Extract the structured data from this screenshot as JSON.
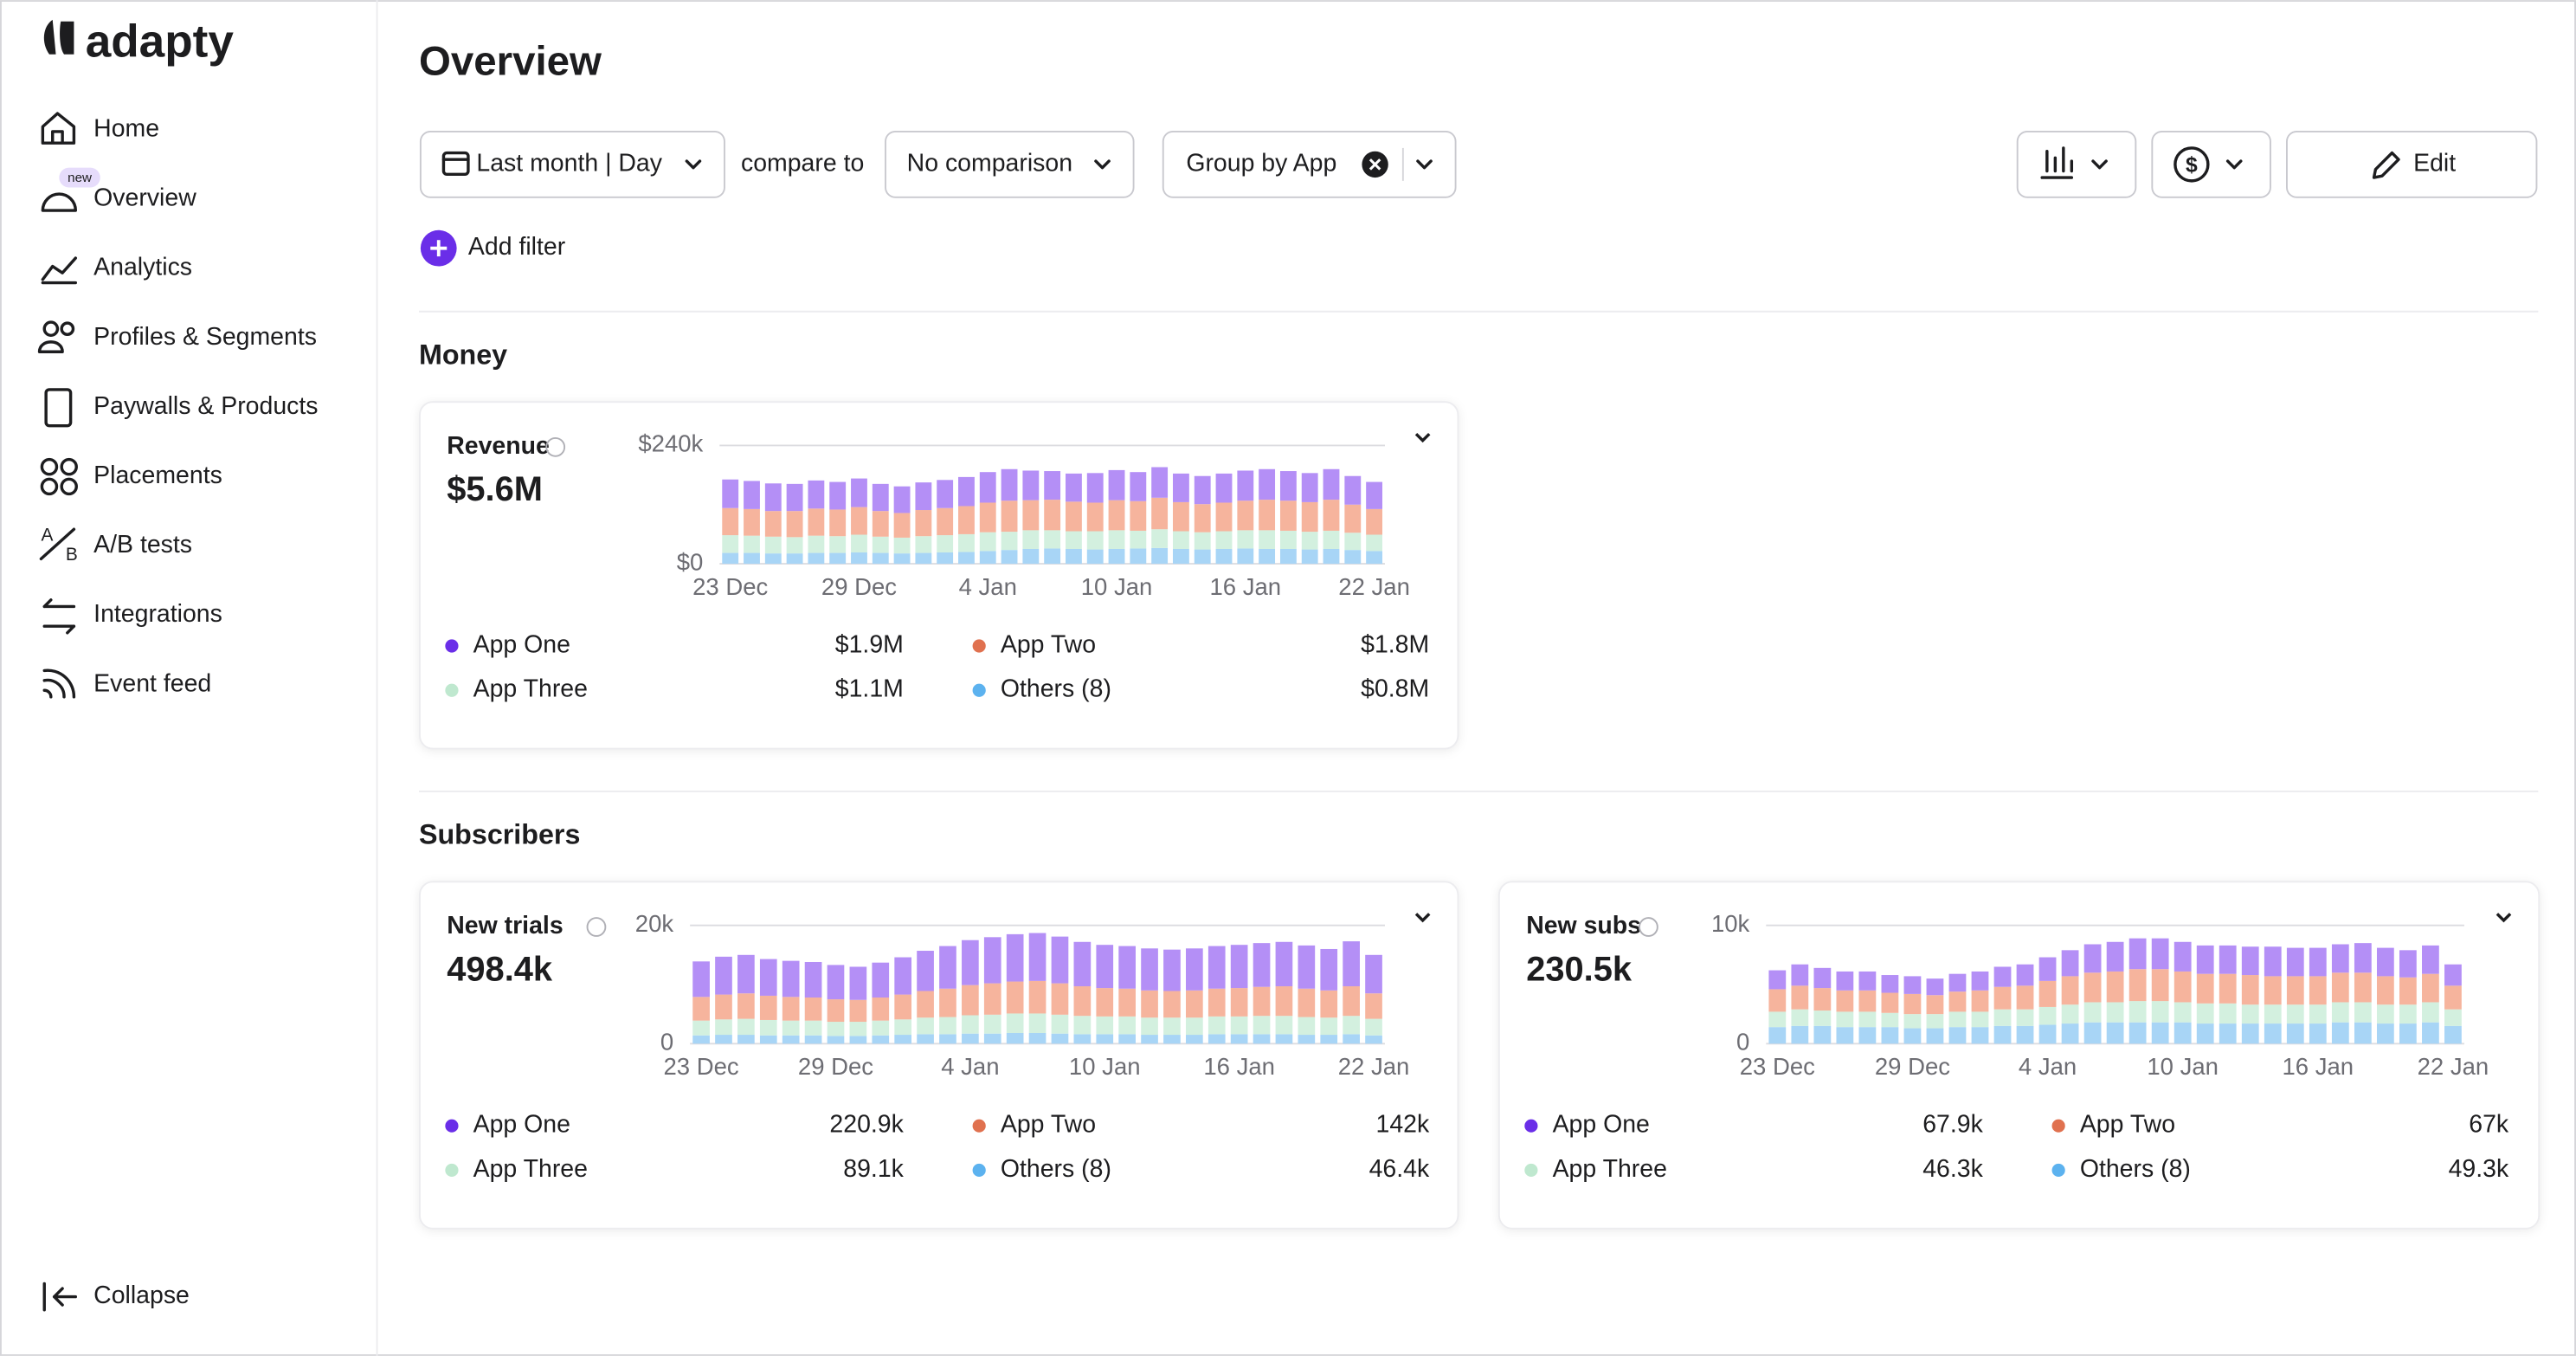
{
  "sidebar": {
    "logo": "adapty",
    "items": [
      "Home",
      "Overview",
      "Analytics",
      "Profiles & Segments",
      "Paywalls & Products",
      "Placements",
      "A/B tests",
      "Integrations",
      "Event feed"
    ],
    "badge": "new",
    "collapse": "Collapse"
  },
  "header": {
    "title": "Overview",
    "date_range": "Last month | Day",
    "compare_label": "compare to",
    "comparison": "No comparison",
    "group": "Group by App",
    "edit": "Edit",
    "add_filter": "Add filter"
  },
  "sections": [
    "Money",
    "Subscribers"
  ],
  "chart_data": [
    {
      "type": "bar",
      "stacked": true,
      "title": "Revenue",
      "total": "$5.6M",
      "categories": [
        "23 Dec",
        null,
        null,
        null,
        null,
        null,
        "29 Dec",
        null,
        null,
        null,
        null,
        null,
        "4 Jan",
        null,
        null,
        null,
        null,
        null,
        "10 Jan",
        null,
        null,
        null,
        null,
        null,
        "16 Jan",
        null,
        null,
        null,
        null,
        null,
        "22 Jan"
      ],
      "ylim": [
        0,
        240000
      ],
      "yticks": [
        {
          "value": 0,
          "label": "$0"
        },
        {
          "value": 240000,
          "label": "$240k"
        }
      ],
      "series": [
        {
          "name": "Others (8)",
          "total": "$0.8M",
          "color": "#a8d5f6",
          "legend_color": "#5cb2ef",
          "values": [
            22000,
            22000,
            21000,
            21000,
            22000,
            22000,
            23000,
            22000,
            21000,
            22000,
            23000,
            24000,
            26000,
            28000,
            30000,
            31000,
            30000,
            29000,
            30000,
            31000,
            32000,
            30000,
            29000,
            30000,
            31000,
            30000,
            30000,
            29000,
            30000,
            28000,
            26000
          ]
        },
        {
          "name": "App Three",
          "total": "$1.1M",
          "color": "#d3f0df",
          "legend_color": "#bfe8cf",
          "values": [
            36000,
            35000,
            34000,
            33000,
            35000,
            34000,
            36000,
            33000,
            32000,
            34000,
            35000,
            36000,
            38000,
            37000,
            38000,
            37000,
            36000,
            37000,
            38000,
            36000,
            38000,
            36000,
            35000,
            36000,
            37000,
            38000,
            37000,
            36000,
            37000,
            35000,
            33000
          ]
        },
        {
          "name": "App Two",
          "total": "$1.8M",
          "color": "#f6b49d",
          "legend_color": "#e0714f",
          "values": [
            55000,
            54000,
            52000,
            53000,
            55000,
            54000,
            56000,
            52000,
            50000,
            53000,
            55000,
            57000,
            60000,
            63000,
            61000,
            62000,
            60000,
            58000,
            61000,
            60000,
            64000,
            59000,
            57000,
            58000,
            60000,
            62000,
            61000,
            60000,
            63000,
            57000,
            52000
          ]
        },
        {
          "name": "App One",
          "total": "$1.9M",
          "color": "#b48ff6",
          "legend_color": "#6a2ee8",
          "values": [
            58000,
            57000,
            56000,
            55000,
            57000,
            56000,
            58000,
            55000,
            54000,
            56000,
            57000,
            59000,
            62000,
            64000,
            60000,
            58000,
            57000,
            60000,
            61000,
            59000,
            62000,
            58000,
            57000,
            59000,
            61000,
            62000,
            60000,
            59000,
            62000,
            58000,
            55000
          ]
        }
      ]
    },
    {
      "type": "bar",
      "stacked": true,
      "title": "New trials",
      "total": "498.4k",
      "categories": [
        "23 Dec",
        null,
        null,
        null,
        null,
        null,
        "29 Dec",
        null,
        null,
        null,
        null,
        null,
        "4 Jan",
        null,
        null,
        null,
        null,
        null,
        "10 Jan",
        null,
        null,
        null,
        null,
        null,
        "16 Jan",
        null,
        null,
        null,
        null,
        null,
        "22 Jan"
      ],
      "ylim": [
        0,
        20000
      ],
      "yticks": [
        0,
        {
          "value": 20000,
          "label": "20k"
        }
      ],
      "series": [
        {
          "name": "Others (8)",
          "total": "46.4k",
          "color": "#a8d5f6",
          "legend_color": "#5cb2ef",
          "values": [
            1400,
            1500,
            1500,
            1400,
            1400,
            1400,
            1300,
            1300,
            1400,
            1500,
            1600,
            1600,
            1700,
            1700,
            1800,
            1800,
            1700,
            1600,
            1600,
            1600,
            1500,
            1500,
            1500,
            1600,
            1600,
            1600,
            1600,
            1500,
            1500,
            1600,
            1400
          ]
        },
        {
          "name": "App Three",
          "total": "89.1k",
          "color": "#d3f0df",
          "legend_color": "#bfe8cf",
          "values": [
            2500,
            2600,
            2700,
            2600,
            2500,
            2500,
            2400,
            2400,
            2500,
            2600,
            2800,
            2900,
            3100,
            3200,
            3300,
            3300,
            3200,
            3100,
            3000,
            3000,
            2900,
            2900,
            2900,
            3000,
            3000,
            3100,
            3100,
            3000,
            2900,
            3100,
            2800
          ]
        },
        {
          "name": "App Two",
          "total": "142k",
          "color": "#f6b49d",
          "legend_color": "#e0714f",
          "values": [
            4000,
            4200,
            4300,
            4100,
            4000,
            3900,
            3800,
            3700,
            3900,
            4200,
            4500,
            4800,
            5100,
            5300,
            5400,
            5500,
            5300,
            5000,
            4800,
            4700,
            4600,
            4500,
            4600,
            4700,
            4800,
            4900,
            5000,
            4800,
            4600,
            5000,
            4300
          ]
        },
        {
          "name": "App One",
          "total": "220.9k",
          "color": "#b48ff6",
          "legend_color": "#6a2ee8",
          "values": [
            6000,
            6400,
            6500,
            6200,
            6100,
            6000,
            5800,
            5600,
            5900,
            6300,
            6800,
            7200,
            7600,
            7800,
            8000,
            8100,
            7900,
            7500,
            7300,
            7200,
            7100,
            7000,
            7100,
            7200,
            7300,
            7400,
            7500,
            7300,
            7000,
            7600,
            6500
          ]
        }
      ]
    },
    {
      "type": "bar",
      "stacked": true,
      "title": "New subs",
      "total": "230.5k",
      "categories": [
        "23 Dec",
        null,
        null,
        null,
        null,
        null,
        "29 Dec",
        null,
        null,
        null,
        null,
        null,
        "4 Jan",
        null,
        null,
        null,
        null,
        null,
        "10 Jan",
        null,
        null,
        null,
        null,
        null,
        "16 Jan",
        null,
        null,
        null,
        null,
        null,
        "22 Jan"
      ],
      "ylim": [
        0,
        10000
      ],
      "yticks": [
        0,
        {
          "value": 10000,
          "label": "10k"
        }
      ],
      "series": [
        {
          "name": "Others (8)",
          "total": "49.3k",
          "color": "#a8d5f6",
          "legend_color": "#5cb2ef",
          "values": [
            1400,
            1500,
            1500,
            1400,
            1400,
            1400,
            1300,
            1300,
            1400,
            1400,
            1500,
            1500,
            1600,
            1700,
            1800,
            1800,
            1800,
            1800,
            1800,
            1700,
            1700,
            1700,
            1700,
            1700,
            1700,
            1800,
            1800,
            1700,
            1700,
            1800,
            1500
          ]
        },
        {
          "name": "App Three",
          "total": "46.3k",
          "color": "#d3f0df",
          "legend_color": "#bfe8cf",
          "values": [
            1300,
            1400,
            1300,
            1300,
            1300,
            1200,
            1200,
            1200,
            1300,
            1300,
            1400,
            1400,
            1500,
            1600,
            1700,
            1700,
            1800,
            1800,
            1700,
            1700,
            1700,
            1600,
            1600,
            1600,
            1600,
            1700,
            1700,
            1600,
            1600,
            1700,
            1400
          ]
        },
        {
          "name": "App Two",
          "total": "67k",
          "color": "#f6b49d",
          "legend_color": "#e0714f",
          "values": [
            1900,
            2000,
            1900,
            1800,
            1800,
            1700,
            1700,
            1600,
            1700,
            1800,
            1900,
            2000,
            2200,
            2400,
            2500,
            2600,
            2700,
            2700,
            2600,
            2500,
            2500,
            2500,
            2400,
            2400,
            2400,
            2500,
            2500,
            2400,
            2300,
            2400,
            2000
          ]
        },
        {
          "name": "App One",
          "total": "67.9k",
          "color": "#b48ff6",
          "legend_color": "#6a2ee8",
          "values": [
            1600,
            1800,
            1700,
            1600,
            1600,
            1500,
            1500,
            1400,
            1500,
            1600,
            1700,
            1800,
            2000,
            2200,
            2400,
            2500,
            2600,
            2600,
            2500,
            2400,
            2400,
            2400,
            2500,
            2400,
            2400,
            2400,
            2500,
            2400,
            2300,
            2400,
            1800
          ]
        }
      ]
    }
  ]
}
